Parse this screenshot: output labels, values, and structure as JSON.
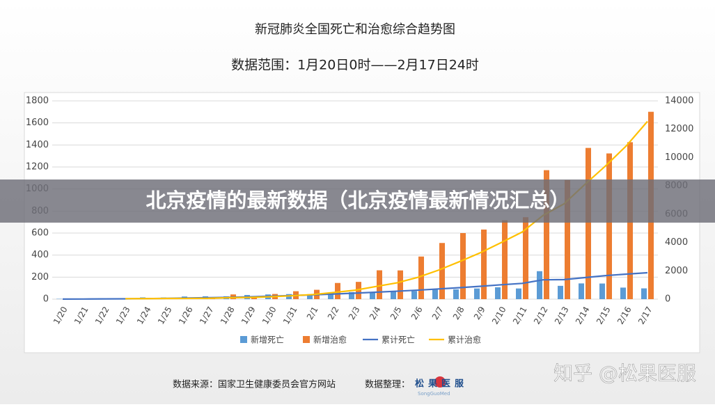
{
  "chart_data": {
    "type": "bar-line",
    "title": "新冠肺炎全国死亡和治愈综合趋势图",
    "subtitle": "数据范围：1月20日0时——2月17日24时",
    "categories": [
      "1/20",
      "1/21",
      "1/22",
      "1/23",
      "1/24",
      "1/25",
      "1/26",
      "1/27",
      "1/28",
      "1/29",
      "1/30",
      "1/31",
      "2/1",
      "2/2",
      "2/3",
      "2/4",
      "2/5",
      "2/6",
      "2/7",
      "2/8",
      "2/9",
      "2/10",
      "2/11",
      "2/12",
      "2/13",
      "2/14",
      "2/15",
      "2/16",
      "2/17"
    ],
    "series": [
      {
        "name": "新增死亡",
        "kind": "bar",
        "color": "#5b9bd5",
        "values": [
          3,
          3,
          8,
          8,
          16,
          15,
          24,
          26,
          26,
          38,
          43,
          46,
          45,
          57,
          64,
          65,
          73,
          73,
          86,
          89,
          97,
          108,
          97,
          254,
          121,
          143,
          142,
          105,
          98
        ]
      },
      {
        "name": "新增治愈",
        "kind": "bar",
        "color": "#ed7d31",
        "values": [
          0,
          0,
          0,
          6,
          3,
          11,
          5,
          9,
          43,
          21,
          47,
          72,
          85,
          147,
          157,
          262,
          261,
          387,
          510,
          600,
          632,
          716,
          744,
          1171,
          1081,
          1373,
          1323,
          1425,
          1701
        ]
      },
      {
        "name": "累计死亡",
        "kind": "line",
        "axis": "y2",
        "color": "#4472c4",
        "values": [
          6,
          9,
          17,
          25,
          41,
          56,
          80,
          106,
          132,
          170,
          213,
          259,
          304,
          361,
          425,
          490,
          563,
          636,
          722,
          811,
          908,
          1016,
          1113,
          1367,
          1380,
          1523,
          1665,
          1770,
          1868
        ]
      },
      {
        "name": "累计治愈",
        "kind": "line",
        "axis": "y2",
        "color": "#ffc000",
        "values": [
          null,
          null,
          null,
          34,
          38,
          49,
          51,
          60,
          103,
          124,
          171,
          243,
          328,
          475,
          632,
          892,
          1153,
          1540,
          2050,
          2649,
          3281,
          3996,
          4740,
          5911,
          6723,
          8096,
          9419,
          10844,
          12552
        ]
      }
    ],
    "ylim": [
      0,
      1800
    ],
    "yticks": [
      0,
      200,
      400,
      600,
      800,
      1000,
      1200,
      1400,
      1600,
      1800
    ],
    "y2lim": [
      0,
      14000
    ],
    "y2ticks": [
      0,
      2000,
      4000,
      6000,
      8000,
      10000,
      12000,
      14000
    ],
    "grid": true,
    "legend": "bottom"
  },
  "banner": "北京疫情的最新数据（北京疫情最新情况汇总）",
  "footer": {
    "source": "数据来源：国家卫生健康委员会官方网站",
    "organizer": "数据整理：",
    "logo": "松果医服",
    "logo_sub": "SongGuoMed"
  },
  "watermark": "知乎 @松果医服"
}
